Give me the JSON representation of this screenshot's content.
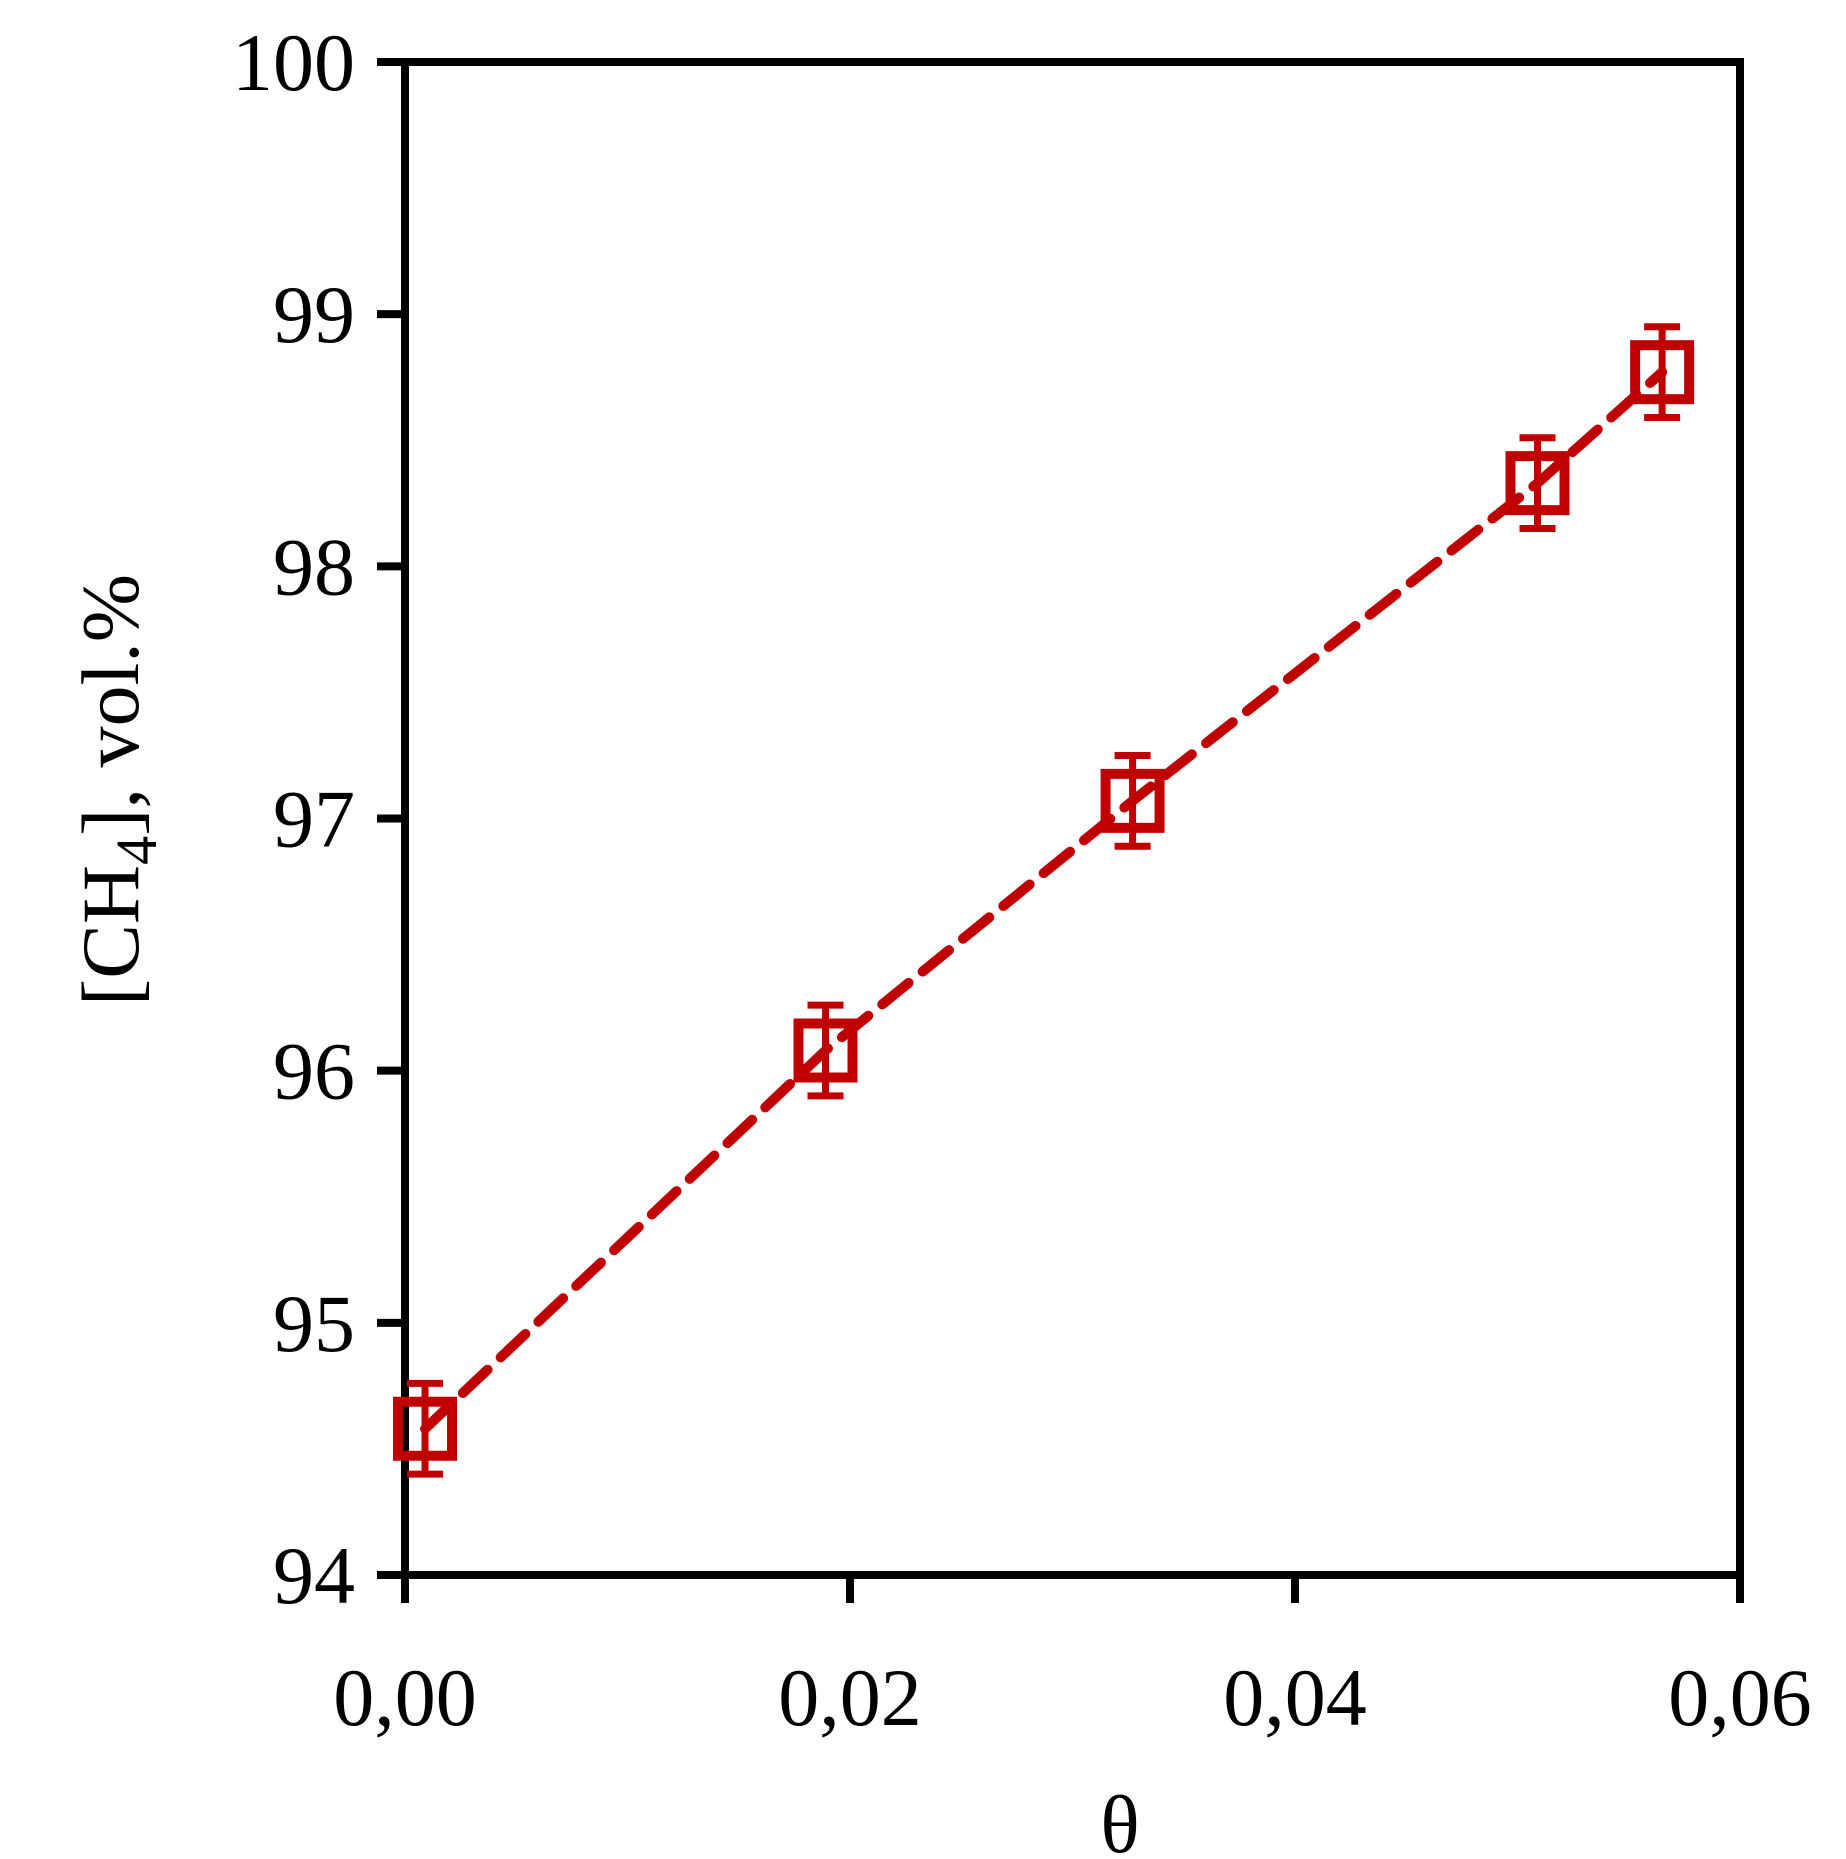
{
  "chart_data": {
    "type": "scatter",
    "title": "",
    "xlabel": "θ",
    "ylabel": {
      "prefix": "[CH",
      "subscript": "4",
      "suffix": "], vol.%"
    },
    "xlim": [
      0,
      0.06
    ],
    "ylim": [
      94,
      100
    ],
    "x_ticks": [
      "0,00",
      "0,02",
      "0,04",
      "0,06"
    ],
    "y_ticks": [
      "94",
      "95",
      "96",
      "97",
      "98",
      "99",
      "100"
    ],
    "x_tick_values": [
      0,
      0.02,
      0.04,
      0.06
    ],
    "y_tick_values": [
      94,
      95,
      96,
      97,
      98,
      99,
      100
    ],
    "grid": false,
    "legend": "none",
    "series": [
      {
        "marker": "open-square",
        "line": "dashed",
        "color": "#c00000",
        "x": [
          0.0009,
          0.0189,
          0.0327,
          0.0509,
          0.0565
        ],
        "y": [
          94.58,
          96.08,
          97.07,
          98.33,
          98.77
        ],
        "error": [
          0.18,
          0.18,
          0.18,
          0.18,
          0.18
        ]
      }
    ]
  }
}
